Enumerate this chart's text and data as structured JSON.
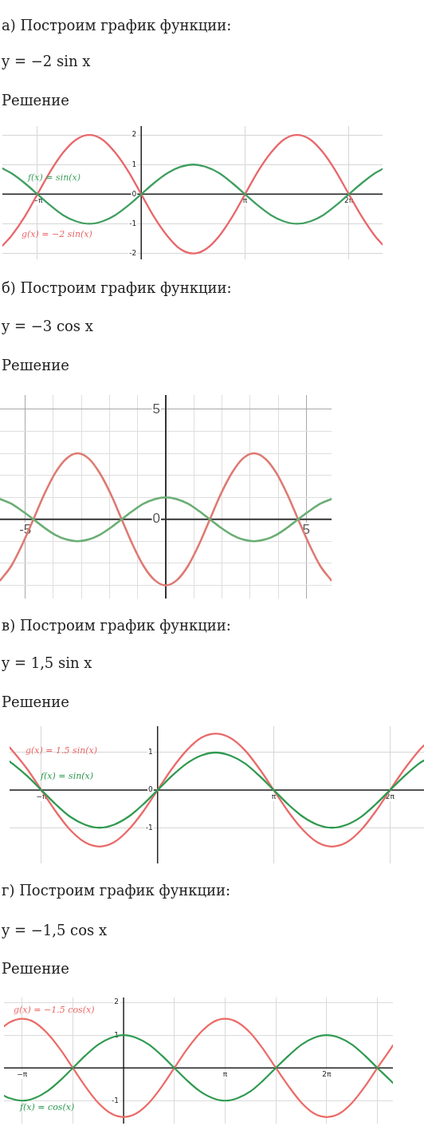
{
  "chart_data": [
    {
      "type": "line",
      "title": "а) Построим график функции:",
      "subtitle": "y = −2 sin x",
      "annotations": [
        "Решение"
      ],
      "x": [
        -4.2,
        -3.93,
        -3.53,
        -3.14,
        -2.75,
        -2.36,
        -1.96,
        -1.57,
        -1.18,
        -0.79,
        -0.39,
        0,
        0.39,
        0.79,
        1.18,
        1.57,
        1.96,
        2.36,
        2.75,
        3.14,
        3.53,
        3.93,
        4.32,
        4.71,
        5.11,
        5.5,
        5.89,
        6.28,
        6.68,
        7.07,
        7.3
      ],
      "series": [
        {
          "name": "f(x) = sin(x)",
          "color": "#3f9f60",
          "values": [
            0.87,
            0.71,
            0.38,
            0,
            -0.38,
            -0.71,
            -0.92,
            -1,
            -0.92,
            -0.71,
            -0.38,
            0,
            0.38,
            0.71,
            0.92,
            1,
            0.92,
            0.71,
            0.38,
            0,
            -0.38,
            -0.71,
            -0.92,
            -1,
            -0.92,
            -0.71,
            -0.38,
            0,
            0.38,
            0.71,
            0.85
          ]
        },
        {
          "name": "g(x) = −2 sin(x)",
          "color": "#e8676b",
          "values": [
            -1.74,
            -1.41,
            -0.77,
            0,
            0.77,
            1.41,
            1.85,
            2,
            1.85,
            1.41,
            0.77,
            0,
            -0.77,
            -1.41,
            -1.85,
            -2,
            -1.85,
            -1.41,
            -0.77,
            0,
            0.77,
            1.41,
            1.85,
            2,
            1.85,
            1.41,
            0.77,
            0,
            -0.77,
            -1.41,
            -1.7
          ]
        }
      ],
      "xlim": [
        -4.2,
        7.3
      ],
      "ylim": [
        -2.2,
        2.3
      ],
      "xticks": [
        {
          "value": -3.14,
          "label": "−π"
        },
        {
          "value": 3.14,
          "label": "π"
        },
        {
          "value": 6.28,
          "label": "2π"
        }
      ],
      "yticks": [
        -2,
        -1,
        0,
        1,
        2
      ],
      "grid": true,
      "marker": "none",
      "line_style": "solid"
    },
    {
      "type": "line",
      "title": "б) Построим график функции:",
      "subtitle": "y = −3 cos x",
      "annotations": [
        "Решение"
      ],
      "x": [
        -5.89,
        -5.5,
        -5.11,
        -4.71,
        -4.32,
        -3.93,
        -3.53,
        -3.14,
        -2.75,
        -2.36,
        -1.96,
        -1.57,
        -1.18,
        -0.79,
        -0.39,
        0,
        0.39,
        0.79,
        1.18,
        1.57,
        1.96,
        2.36,
        2.75,
        3.14,
        3.53,
        3.93,
        4.32,
        4.71,
        5.11,
        5.5,
        5.89
      ],
      "series": [
        {
          "color": "#6aae74",
          "values": [
            0.92,
            0.71,
            0.38,
            0,
            -0.38,
            -0.71,
            -0.92,
            -1,
            -0.92,
            -0.71,
            -0.38,
            0,
            0.38,
            0.71,
            0.92,
            1,
            0.92,
            0.71,
            0.38,
            0,
            -0.38,
            -0.71,
            -0.92,
            -1,
            -0.92,
            -0.71,
            -0.38,
            0,
            0.38,
            0.71,
            0.92
          ]
        },
        {
          "color": "#de7a72",
          "values": [
            -2.77,
            -2.12,
            -1.15,
            0,
            1.15,
            2.12,
            2.77,
            3,
            2.77,
            2.12,
            1.15,
            0,
            -1.15,
            -2.12,
            -2.77,
            -3,
            -2.77,
            -2.12,
            -1.15,
            0,
            1.15,
            2.12,
            2.77,
            3,
            2.77,
            2.12,
            1.15,
            0,
            -1.15,
            -2.12,
            -2.77
          ]
        }
      ],
      "xlim": [
        -5.9,
        5.9
      ],
      "ylim": [
        -3.6,
        5.65
      ],
      "xticks": [
        -5,
        {
          "value": -4,
          "label": null
        },
        {
          "value": -3,
          "label": null
        },
        {
          "value": -2,
          "label": null
        },
        {
          "value": -1,
          "label": null
        },
        {
          "value": 1,
          "label": null
        },
        {
          "value": 2,
          "label": null
        },
        {
          "value": 3,
          "label": null
        },
        {
          "value": 4,
          "label": null
        },
        5
      ],
      "yticks": [
        {
          "value": -3,
          "label": null
        },
        {
          "value": -2,
          "label": null
        },
        {
          "value": -1,
          "label": null
        },
        0,
        {
          "value": 1,
          "label": null
        },
        {
          "value": 2,
          "label": null
        },
        {
          "value": 3,
          "label": null
        },
        {
          "value": 4,
          "label": null
        },
        5
      ],
      "grid": true,
      "marker": "none",
      "line_style": "solid"
    },
    {
      "type": "line",
      "title": "в) Построим график функции:",
      "subtitle": "y = 1,5 sin x",
      "annotations": [
        "Решение"
      ],
      "x": [
        -4,
        -3.93,
        -3.53,
        -3.14,
        -2.75,
        -2.36,
        -1.96,
        -1.57,
        -1.18,
        -0.79,
        -0.39,
        0,
        0.39,
        0.79,
        1.18,
        1.57,
        1.96,
        2.36,
        2.75,
        3.14,
        3.53,
        3.93,
        4.32,
        4.71,
        5.11,
        5.5,
        5.89,
        6.28,
        6.68,
        7.07,
        7.2
      ],
      "series": [
        {
          "name": "f(x) = sin(x)",
          "color": "#2f9a50",
          "values": [
            0.76,
            0.71,
            0.38,
            0,
            -0.38,
            -0.71,
            -0.92,
            -1,
            -0.92,
            -0.71,
            -0.38,
            0,
            0.38,
            0.71,
            0.92,
            1,
            0.92,
            0.71,
            0.38,
            0,
            -0.38,
            -0.71,
            -0.92,
            -1,
            -0.92,
            -0.71,
            -0.38,
            0,
            0.38,
            0.71,
            0.79
          ]
        },
        {
          "name": "g(x) = 1.5 sin(x)",
          "color": "#ea6a6a",
          "values": [
            1.14,
            1.06,
            0.57,
            0,
            -0.57,
            -1.06,
            -1.39,
            -1.5,
            -1.39,
            -1.06,
            -0.57,
            0,
            0.57,
            1.06,
            1.39,
            1.5,
            1.39,
            1.06,
            0.57,
            0,
            -0.57,
            -1.06,
            -1.39,
            -1.5,
            -1.39,
            -1.06,
            -0.57,
            0,
            0.57,
            1.06,
            1.19
          ]
        }
      ],
      "xlim": [
        -4,
        7.2
      ],
      "ylim": [
        -1.95,
        1.7
      ],
      "xticks": [
        {
          "value": -3.14,
          "label": "−π"
        },
        {
          "value": 3.14,
          "label": "π"
        },
        {
          "value": 6.28,
          "label": "2π"
        }
      ],
      "yticks": [
        -1,
        0,
        1
      ],
      "grid": true,
      "marker": "none",
      "line_style": "solid"
    },
    {
      "type": "line",
      "title": "г) Построим график функции:",
      "subtitle": "y = −1,5 cos x",
      "annotations": [
        "Решение"
      ],
      "x": [
        -3.7,
        -3.53,
        -3.14,
        -2.75,
        -2.36,
        -1.96,
        -1.57,
        -1.18,
        -0.79,
        -0.39,
        0,
        0.39,
        0.79,
        1.18,
        1.57,
        1.96,
        2.36,
        2.75,
        3.14,
        3.53,
        3.93,
        4.32,
        4.71,
        5.11,
        5.5,
        5.89,
        6.28,
        6.68,
        7.07,
        7.46,
        7.85,
        8.25,
        8.33
      ],
      "series": [
        {
          "name": "f(x) = cos(x)",
          "color": "#2f9a50",
          "values": [
            -0.85,
            -0.92,
            -1,
            -0.92,
            -0.71,
            -0.38,
            0,
            0.38,
            0.71,
            0.92,
            1,
            0.92,
            0.71,
            0.38,
            0,
            -0.38,
            -0.71,
            -0.92,
            -1,
            -0.92,
            -0.71,
            -0.38,
            0,
            0.38,
            0.71,
            0.92,
            1,
            0.92,
            0.71,
            0.38,
            0,
            -0.38,
            -0.46
          ]
        },
        {
          "name": "g(x) = −1.5 cos(x)",
          "color": "#ec6a66",
          "values": [
            1.27,
            1.39,
            1.5,
            1.39,
            1.06,
            0.57,
            0,
            -0.57,
            -1.06,
            -1.39,
            -1.5,
            -1.39,
            -1.06,
            -0.57,
            0,
            0.57,
            1.06,
            1.39,
            1.5,
            1.39,
            1.06,
            0.57,
            0,
            -0.57,
            -1.06,
            -1.39,
            -1.5,
            -1.39,
            -1.06,
            -0.57,
            0,
            0.57,
            0.69
          ]
        }
      ],
      "xlim": [
        -3.7,
        8.33
      ],
      "ylim": [
        -1.7,
        2.15
      ],
      "xticks": [
        {
          "value": -3.14,
          "label": "−π"
        },
        {
          "value": -1.57,
          "label": null
        },
        {
          "value": 1.57,
          "label": null
        },
        {
          "value": 3.14,
          "label": "π"
        },
        {
          "value": 4.71,
          "label": null
        },
        {
          "value": 6.28,
          "label": "2π"
        },
        {
          "value": 7.85,
          "label": null
        }
      ],
      "yticks": [
        -1,
        1,
        2
      ],
      "grid": true,
      "marker": "none",
      "line_style": "solid"
    }
  ]
}
